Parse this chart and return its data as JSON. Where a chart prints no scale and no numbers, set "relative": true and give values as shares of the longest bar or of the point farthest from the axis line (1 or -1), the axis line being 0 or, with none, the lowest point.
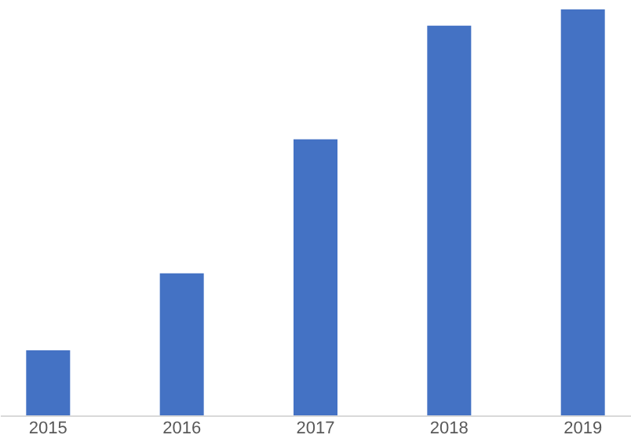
{
  "chart_data": {
    "type": "bar",
    "relative": true,
    "categories": [
      "2015",
      "2016",
      "2017",
      "2018",
      "2019"
    ],
    "values": [
      0.16,
      0.35,
      0.68,
      0.96,
      1
    ],
    "color": "#4472c4"
  }
}
